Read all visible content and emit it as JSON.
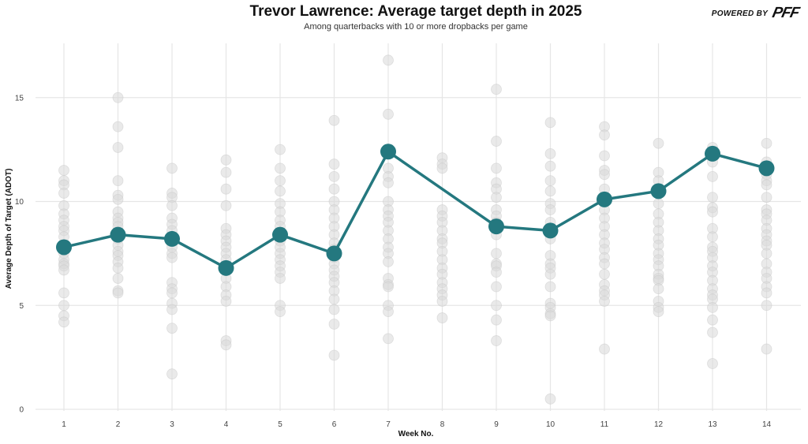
{
  "header": {
    "title": "Trevor Lawrence: Average target depth in 2025",
    "subtitle": "Among quarterbacks with 10 or more dropbacks per game",
    "powered_by": "POWERED BY",
    "logo_text": "PFF"
  },
  "colors": {
    "highlight": "#24787F",
    "background_points": "#d9d9d9",
    "grid": "#e6e6e6"
  },
  "chart_data": {
    "type": "scatter",
    "title": "Trevor Lawrence: Average target depth in 2025",
    "subtitle": "Among quarterbacks with 10 or more dropbacks per game",
    "xlabel": "Week No.",
    "ylabel": "Average Depth of Target (ADOT)",
    "xlim": [
      0.5,
      14.5
    ],
    "ylim": [
      0,
      17.5
    ],
    "x_ticks": [
      1,
      2,
      3,
      4,
      5,
      6,
      7,
      8,
      9,
      10,
      11,
      12,
      13,
      14
    ],
    "y_ticks": [
      0,
      5,
      10,
      15
    ],
    "grid": true,
    "highlight_series": {
      "name": "Trevor Lawrence",
      "x": [
        1,
        2,
        3,
        4,
        5,
        6,
        7,
        9,
        10,
        11,
        12,
        13,
        14
      ],
      "y": [
        7.8,
        8.4,
        8.2,
        6.8,
        8.4,
        7.5,
        12.4,
        8.8,
        8.6,
        10.1,
        10.5,
        12.3,
        11.6
      ]
    },
    "background_series": {
      "name": "",
      "points": [
        [
          1,
          [
            11.5,
            11.0,
            10.8,
            10.4,
            9.8,
            9.4,
            9.1,
            8.8,
            8.6,
            8.3,
            7.9,
            7.5,
            7.2,
            7.0,
            6.9,
            6.7,
            5.6,
            5.0,
            4.5,
            4.2
          ]
        ],
        [
          2,
          [
            15.0,
            13.6,
            12.6,
            11.0,
            10.3,
            10.1,
            9.5,
            9.2,
            9.0,
            8.8,
            8.5,
            8.2,
            7.9,
            7.6,
            7.4,
            7.1,
            6.8,
            6.3,
            5.7,
            5.6
          ]
        ],
        [
          3,
          [
            11.6,
            10.4,
            10.2,
            9.8,
            9.2,
            8.9,
            8.6,
            8.3,
            7.8,
            7.5,
            7.3,
            6.1,
            5.8,
            5.6,
            5.1,
            4.8,
            3.9,
            1.7
          ]
        ],
        [
          4,
          [
            12.0,
            11.4,
            10.6,
            9.8,
            8.7,
            8.4,
            8.1,
            7.8,
            7.5,
            7.2,
            6.9,
            6.3,
            5.9,
            5.5,
            5.2,
            3.3,
            3.1
          ]
        ],
        [
          5,
          [
            12.5,
            11.6,
            11.0,
            10.5,
            9.9,
            9.5,
            9.1,
            8.8,
            8.5,
            8.1,
            7.8,
            7.5,
            7.2,
            6.9,
            6.6,
            6.3,
            5.0,
            4.7
          ]
        ],
        [
          6,
          [
            13.9,
            11.8,
            11.2,
            10.6,
            10.0,
            9.6,
            9.2,
            8.8,
            8.4,
            8.0,
            7.7,
            7.3,
            7.0,
            6.7,
            6.4,
            6.1,
            5.7,
            5.3,
            4.8,
            4.1,
            2.6
          ]
        ],
        [
          7,
          [
            16.8,
            14.2,
            11.6,
            11.2,
            10.9,
            10.0,
            9.6,
            9.3,
            9.0,
            8.6,
            8.2,
            7.8,
            7.5,
            7.1,
            6.3,
            6.0,
            5.9,
            5.0,
            4.7,
            3.4
          ]
        ],
        [
          8,
          [
            12.1,
            11.8,
            11.6,
            9.6,
            9.3,
            9.0,
            8.6,
            8.2,
            8.0,
            7.6,
            7.2,
            6.8,
            6.5,
            6.1,
            5.8,
            5.5,
            5.2,
            4.4
          ]
        ],
        [
          9,
          [
            15.4,
            12.9,
            11.6,
            10.9,
            10.6,
            10.2,
            9.6,
            9.3,
            9.0,
            8.7,
            8.4,
            7.5,
            7.0,
            6.9,
            6.6,
            5.9,
            5.0,
            4.3,
            3.3
          ]
        ],
        [
          10,
          [
            13.8,
            12.3,
            11.7,
            11.0,
            10.5,
            9.9,
            9.6,
            9.0,
            8.5,
            8.2,
            7.4,
            7.0,
            6.8,
            6.5,
            5.9,
            5.1,
            4.9,
            4.6,
            4.5,
            0.5
          ]
        ],
        [
          11,
          [
            13.6,
            13.2,
            12.2,
            11.5,
            11.3,
            10.6,
            10.0,
            9.6,
            9.2,
            8.8,
            8.4,
            8.0,
            7.7,
            7.3,
            7.0,
            6.5,
            6.0,
            5.7,
            5.5,
            5.2,
            2.9
          ]
        ],
        [
          12,
          [
            12.8,
            11.4,
            11.0,
            10.4,
            9.9,
            9.4,
            9.0,
            8.6,
            8.2,
            7.9,
            7.5,
            7.2,
            6.9,
            6.5,
            6.3,
            6.2,
            5.8,
            5.2,
            4.9,
            4.7
          ]
        ],
        [
          13,
          [
            12.6,
            11.9,
            11.2,
            10.2,
            9.7,
            9.5,
            8.7,
            8.3,
            7.8,
            7.6,
            7.3,
            6.9,
            6.6,
            6.2,
            5.8,
            5.5,
            5.3,
            4.9,
            4.3,
            3.7,
            2.2
          ]
        ],
        [
          14,
          [
            12.8,
            11.9,
            11.3,
            11.0,
            10.8,
            10.2,
            9.6,
            9.4,
            9.1,
            8.7,
            8.4,
            8.1,
            7.9,
            7.5,
            7.0,
            6.6,
            6.3,
            5.9,
            5.6,
            5.0,
            2.9
          ]
        ]
      ]
    }
  }
}
